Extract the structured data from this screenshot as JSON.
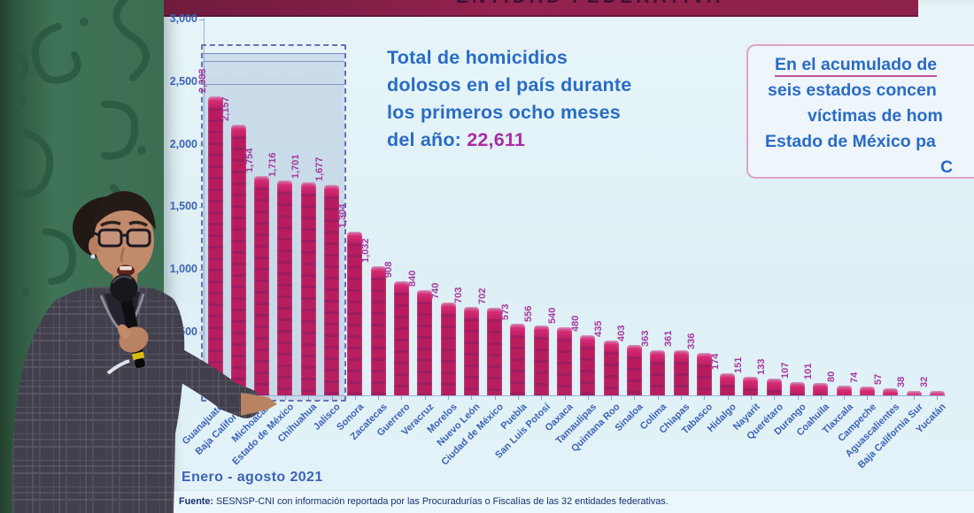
{
  "chart_data": {
    "type": "bar",
    "categories": [
      "Guanajuato",
      "Baja California",
      "Michoacán",
      "Estado de México",
      "Chihuahua",
      "Jalisco",
      "Sonora",
      "Zacatecas",
      "Guerrero",
      "Veracruz",
      "Morelos",
      "Nuevo León",
      "Ciudad de México",
      "Puebla",
      "San Luis Potosí",
      "Oaxaca",
      "Tamaulipas",
      "Quintana Roo",
      "Sinaloa",
      "Colima",
      "Chiapas",
      "Tabasco",
      "Hidalgo",
      "Nayarit",
      "Querétaro",
      "Durango",
      "Coahuila",
      "Tlaxcala",
      "Campeche",
      "Aguascalientes",
      "Baja California Sur",
      "Yucatán"
    ],
    "values": [
      2383,
      2157,
      1754,
      1716,
      1701,
      1677,
      1304,
      1032,
      908,
      840,
      740,
      703,
      702,
      573,
      556,
      540,
      480,
      435,
      403,
      363,
      361,
      336,
      174,
      151,
      133,
      107,
      101,
      80,
      74,
      57,
      38,
      32
    ],
    "value_labels": [
      "2,383",
      "2,157",
      "1,754",
      "1,716",
      "1,701",
      "1,677",
      "1,304",
      "1,032",
      "908",
      "840",
      "740",
      "703",
      "702",
      "573",
      "556",
      "540",
      "480",
      "435",
      "403",
      "363",
      "361",
      "336",
      "174",
      "151",
      "133",
      "107",
      "101",
      "80",
      "74",
      "57",
      "38",
      "32"
    ],
    "ylim": [
      0,
      3000
    ],
    "yticks": [
      {
        "value": 3000,
        "label": "3,000"
      },
      {
        "value": 2500,
        "label": "2,500"
      },
      {
        "value": 2000,
        "label": "2,000"
      },
      {
        "value": 1500,
        "label": "1,500"
      },
      {
        "value": 1000,
        "label": "1,000"
      },
      {
        "value": 500,
        "label": "500"
      }
    ],
    "xlabel": "",
    "ylabel": "",
    "legend": "none",
    "gridlines": "off",
    "highlight_first_n": 6,
    "bar_color": "#b81c5e",
    "value_label_color": "#a63a9e",
    "axis_text_color": "#3d63b6"
  },
  "slide": {
    "banner_partial_text": "ENTIDAD FEDERATIVA",
    "total_callout": {
      "lines": [
        "Total de homicidios",
        "dolosos en el país durante",
        "los primeros ocho meses"
      ],
      "last_line_prefix": "del año: ",
      "total_value": "22,611"
    },
    "annotation_box": {
      "visible_lines": [
        "En el acumulado de",
        "seis estados concen",
        "víctimas de hom",
        "Estado de México pa",
        "C"
      ]
    },
    "period_label": "Enero - agosto 2021",
    "source": {
      "label": "Fuente:",
      "text": " SESNSP-CNI con información reportada por las Procuradurías o Fiscalías de las 32 entidades federativas."
    }
  },
  "scene": {
    "backdrop_color": "#3c6e52",
    "speaker": "presenter-with-microphone",
    "accent_colors": {
      "banner_bg": "#8c2149",
      "title_blue": "#2a6cc4",
      "magenta": "#aa2da0",
      "annotation_border": "#d98ab4",
      "source_text": "#16316f"
    }
  }
}
